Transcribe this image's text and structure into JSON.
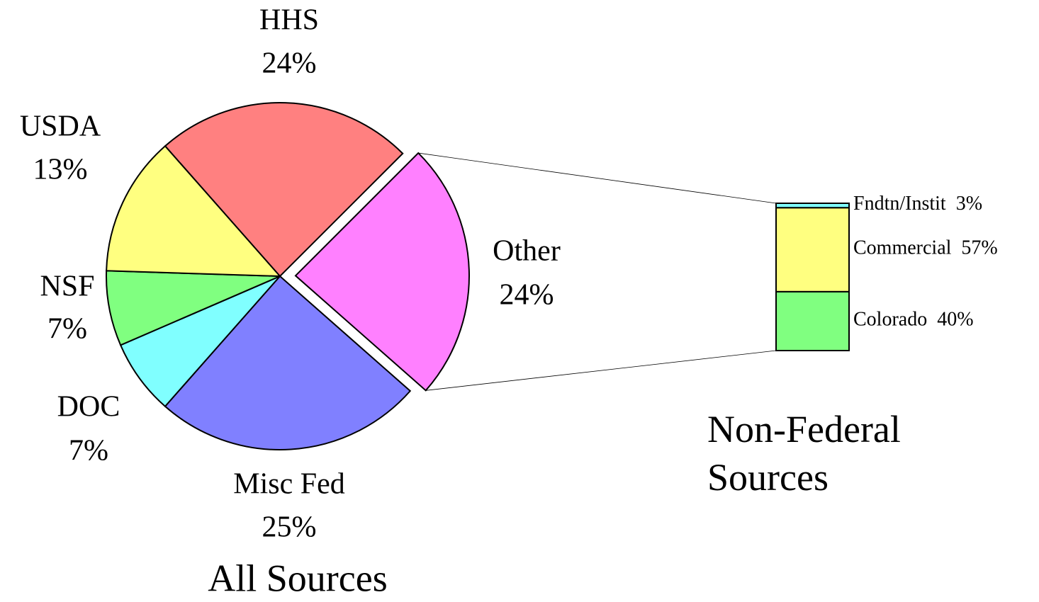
{
  "chart_data": [
    {
      "type": "pie",
      "title": "All Sources",
      "categories": [
        "HHS",
        "Other",
        "Misc Fed",
        "DOC",
        "NSF",
        "USDA"
      ],
      "values": [
        24,
        24,
        25,
        7,
        7,
        13
      ],
      "value_labels": [
        "24%",
        "24%",
        "25%",
        "7%",
        "7%",
        "13%"
      ],
      "colors": [
        "#ff8080",
        "#ff80ff",
        "#8080ff",
        "#80ffff",
        "#80ff80",
        "#ffff80"
      ],
      "exploded": "Other"
    },
    {
      "type": "bar",
      "title": "Non-Federal Sources",
      "stacked": true,
      "categories": [
        "Colorado",
        "Commercial",
        "Fndtn/Instit"
      ],
      "values": [
        40,
        57,
        3
      ],
      "value_labels": [
        "40%",
        "57%",
        "3%"
      ],
      "colors": [
        "#80ff80",
        "#ffff80",
        "#80ffff"
      ]
    }
  ]
}
